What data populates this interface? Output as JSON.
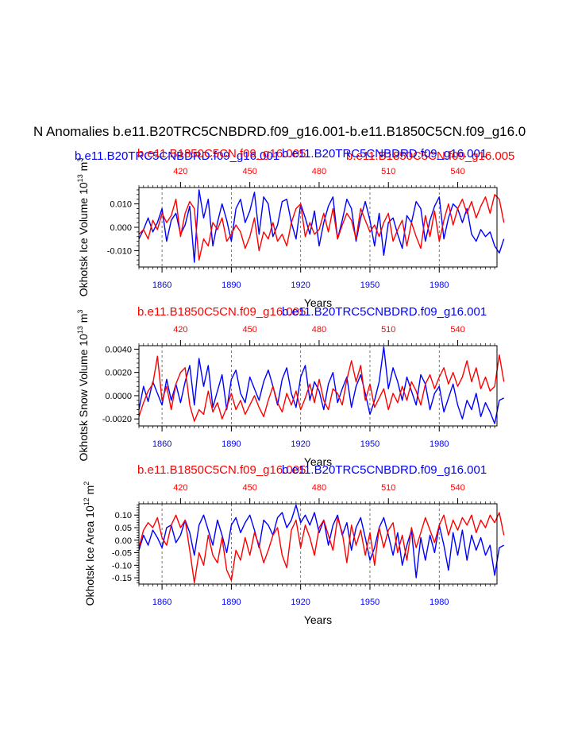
{
  "page": {
    "title": "N Anomalies b.e11.B20TRC5CNBDRD.f09_g16.001-b.e11.B1850C5CN.f09_g16.0",
    "blue_label": "b.e11.B20TRC5CNBDRD.f09_g16.001",
    "red_label": "b.e11.B1850C5CN.f09_g16.005"
  },
  "colors": {
    "blue": "#0000ff",
    "red": "#ff0000",
    "axis": "#000000"
  },
  "chart_data": [
    {
      "type": "line",
      "title": "",
      "ylabel": "Okhotsk Ice Volume 10",
      "ylabel_exp": "13",
      "ylabel_unit": "m",
      "ylabel_unit_exp": "3",
      "xlabel": "Years",
      "top_label_red": "b.e11.B1850C5CN.f09_g16.005",
      "top_label_blue": "b.e11.B20TRC5CNBDRD.f09_g16.001",
      "xlim_bottom": [
        1850,
        2005
      ],
      "xlim_top": [
        402,
        557
      ],
      "ylim": [
        -0.017,
        0.017
      ],
      "yticks": [
        -0.01,
        0.0,
        0.01
      ],
      "ytick_labels": [
        "-0.010",
        "0.000",
        "0.010"
      ],
      "xticks_bottom": [
        1860,
        1890,
        1920,
        1950,
        1980
      ],
      "xticks_top": [
        420,
        450,
        480,
        510,
        540
      ],
      "grid_vlines": [
        1860,
        1890,
        1920,
        1950,
        1980
      ],
      "series": [
        {
          "name": "b.e11.B20TRC5CNBDRD.f09_g16.001",
          "color": "#0000ff",
          "axis": "bottom",
          "x_start": 1850,
          "step": 2,
          "values": [
            -0.005,
            -0.001,
            0.004,
            -0.002,
            0.002,
            0.008,
            -0.006,
            0.003,
            0.006,
            -0.003,
            0.001,
            0.009,
            -0.015,
            0.016,
            0.004,
            0.012,
            -0.008,
            0.002,
            0.01,
            0.003,
            -0.006,
            0.008,
            0.012,
            0.002,
            0.007,
            0.015,
            -0.003,
            0.013,
            0.01,
            -0.004,
            0.001,
            0.011,
            0.012,
            0.002,
            -0.005,
            0.01,
            0.004,
            -0.003,
            0.007,
            -0.008,
            0.002,
            0.009,
            0.013,
            -0.005,
            0.003,
            0.012,
            0.008,
            -0.006,
            0.004,
            0.011,
            0.003,
            -0.008,
            0.006,
            -0.012,
            0.002,
            0.004,
            -0.003,
            -0.009,
            0.005,
            0.002,
            0.011,
            0.008,
            -0.006,
            0.003,
            0.009,
            0.013,
            -0.005,
            0.004,
            0.01,
            0.008,
            0.002,
            0.008,
            -0.003,
            -0.006,
            -0.001,
            -0.004,
            -0.002,
            -0.008,
            -0.011,
            -0.005
          ]
        },
        {
          "name": "b.e11.B1850C5CN.f09_g16.005",
          "color": "#ff0000",
          "axis": "top",
          "x_start": 402,
          "step": 2,
          "values": [
            -0.003,
            -0.001,
            -0.005,
            0.003,
            -0.001,
            0.006,
            0.002,
            0.005,
            0.012,
            -0.004,
            0.006,
            0.011,
            0.008,
            -0.014,
            -0.005,
            -0.008,
            0.002,
            -0.001,
            0.004,
            -0.006,
            -0.003,
            0.001,
            -0.002,
            -0.009,
            -0.004,
            0.004,
            -0.01,
            -0.002,
            -0.005,
            0.002,
            -0.006,
            -0.003,
            -0.008,
            0.002,
            0.008,
            0.01,
            -0.004,
            0.002,
            -0.003,
            -0.001,
            0.006,
            -0.002,
            0.008,
            -0.005,
            0.001,
            0.006,
            0.003,
            -0.005,
            0.008,
            0.003,
            -0.002,
            0.001,
            -0.004,
            0.002,
            0.006,
            -0.006,
            -0.001,
            0.003,
            -0.008,
            0.002,
            -0.004,
            -0.009,
            0.005,
            -0.004,
            0.007,
            -0.006,
            0.003,
            0.01,
            0.001,
            0.008,
            0.012,
            0.006,
            0.011,
            0.004,
            0.009,
            0.013,
            0.006,
            0.014,
            0.012,
            0.002
          ]
        }
      ]
    },
    {
      "type": "line",
      "title": "",
      "ylabel": "Okhotsk Snow Volume 10",
      "ylabel_exp": "13",
      "ylabel_unit": "m",
      "ylabel_unit_exp": "3",
      "xlabel": "Years",
      "top_label_red": "b.e11.B1850C5CN.f09_g16.005",
      "top_label_blue": "b.e11.B20TRC5CNBDRD.f09_g16.001",
      "xlim_bottom": [
        1850,
        2005
      ],
      "xlim_top": [
        402,
        557
      ],
      "ylim": [
        -0.0026,
        0.0043
      ],
      "yticks": [
        -0.002,
        0.0,
        0.002,
        0.004
      ],
      "ytick_labels": [
        "-0.0020",
        "0.0000",
        "0.0020",
        "0.0040"
      ],
      "xticks_bottom": [
        1860,
        1890,
        1920,
        1950,
        1980
      ],
      "xticks_top": [
        420,
        450,
        480,
        510,
        540
      ],
      "grid_vlines": [
        1860,
        1890,
        1920,
        1950,
        1980
      ],
      "series": [
        {
          "name": "b.e11.B20TRC5CNBDRD.f09_g16.001",
          "color": "#0000ff",
          "axis": "bottom",
          "x_start": 1850,
          "step": 2,
          "values": [
            -0.0012,
            0.0008,
            -0.0005,
            0.0012,
            0.0002,
            -0.0008,
            0.0014,
            -0.0004,
            0.001,
            -0.0006,
            0.0012,
            0.0026,
            -0.0008,
            0.0032,
            0.0008,
            0.0026,
            -0.001,
            0.0004,
            0.0018,
            -0.0012,
            0.0014,
            0.0022,
            0.0002,
            -0.0006,
            0.0016,
            0.0006,
            -0.0004,
            0.0012,
            0.0022,
            0.0008,
            -0.0008,
            0.0014,
            0.0024,
            0.0002,
            -0.001,
            0.0016,
            0.0026,
            -0.0004,
            0.0012,
            0.0004,
            -0.0012,
            0.001,
            0.002,
            -0.0006,
            0.0006,
            0.0016,
            -0.001,
            0.0008,
            0.0018,
            0.0002,
            -0.0016,
            -0.0004,
            0.0012,
            0.0042,
            0.0006,
            0.0024,
            0.0012,
            -0.0004,
            0.0016,
            0.0004,
            -0.0008,
            0.0018,
            0.001,
            -0.0012,
            0.0002,
            0.0008,
            -0.0014,
            -0.0002,
            0.001,
            -0.0008,
            -0.002,
            -0.0004,
            -0.0012,
            0.0002,
            -0.0018,
            -0.0006,
            -0.0014,
            -0.0024,
            -0.0004,
            -0.0002
          ]
        },
        {
          "name": "b.e11.B1850C5CN.f09_g16.005",
          "color": "#ff0000",
          "axis": "top",
          "x_start": 402,
          "step": 2,
          "values": [
            -0.0018,
            -0.0006,
            0.0004,
            0.001,
            0.0034,
            -0.0004,
            0.0008,
            -0.0012,
            0.001,
            0.002,
            0.0024,
            -0.0008,
            -0.0022,
            -0.0012,
            -0.0016,
            0.0004,
            -0.0014,
            -0.0006,
            -0.002,
            -0.001,
            0.0002,
            -0.0012,
            -0.0004,
            -0.0016,
            -0.0008,
            0.0,
            -0.001,
            -0.0018,
            -0.0004,
            0.0008,
            -0.0006,
            -0.0014,
            0.0002,
            -0.0008,
            0.0004,
            -0.0012,
            -0.0002,
            0.001,
            -0.0006,
            0.0014,
            -0.0004,
            -0.0012,
            0.0006,
            0.0002,
            -0.0008,
            0.0014,
            0.003,
            0.0012,
            0.0026,
            -0.0004,
            0.001,
            -0.001,
            -0.0002,
            0.0006,
            -0.0012,
            0.0002,
            -0.0006,
            0.0008,
            -0.0004,
            0.0012,
            0.0004,
            -0.0008,
            0.001,
            0.0018,
            0.0006,
            0.0016,
            0.0024,
            0.001,
            0.002,
            0.0008,
            0.0016,
            0.003,
            0.0012,
            0.0024,
            0.0006,
            0.0016,
            0.0004,
            0.0008,
            0.0035,
            0.0012
          ]
        }
      ]
    },
    {
      "type": "line",
      "title": "",
      "ylabel": "Okhotsk Ice Area 10",
      "ylabel_exp": "12",
      "ylabel_unit": "m",
      "ylabel_unit_exp": "2",
      "xlabel": "Years",
      "top_label_red": "b.e11.B1850C5CN.f09_g16.005",
      "top_label_blue": "b.e11.B20TRC5CNBDRD.f09_g16.001",
      "xlim_bottom": [
        1850,
        2005
      ],
      "xlim_top": [
        402,
        557
      ],
      "ylim": [
        -0.175,
        0.145
      ],
      "yticks": [
        -0.15,
        -0.1,
        -0.05,
        0.0,
        0.05,
        0.1
      ],
      "ytick_labels": [
        "-0.15",
        "-0.10",
        "-0.05",
        "0.00",
        "0.05",
        "0.10"
      ],
      "xticks_bottom": [
        1860,
        1890,
        1920,
        1950,
        1980
      ],
      "xticks_top": [
        420,
        450,
        480,
        510,
        540
      ],
      "grid_vlines": [
        1860,
        1890,
        1920,
        1950,
        1980
      ],
      "series": [
        {
          "name": "b.e11.B20TRC5CNBDRD.f09_g16.001",
          "color": "#0000ff",
          "axis": "bottom",
          "x_start": 1850,
          "step": 2,
          "values": [
            -0.04,
            0.02,
            -0.02,
            0.04,
            0.01,
            -0.03,
            0.05,
            0.06,
            -0.01,
            0.02,
            0.08,
            0.03,
            -0.06,
            0.06,
            0.1,
            0.04,
            -0.02,
            0.08,
            0.02,
            -0.05,
            0.06,
            0.09,
            0.03,
            0.07,
            0.1,
            0.04,
            -0.03,
            0.08,
            0.06,
            0.02,
            0.09,
            0.11,
            0.05,
            0.08,
            0.14,
            0.07,
            0.1,
            0.06,
            0.11,
            0.03,
            0.08,
            -0.02,
            0.06,
            0.1,
            0.02,
            0.07,
            -0.04,
            0.05,
            0.09,
            0.01,
            -0.08,
            -0.03,
            0.05,
            0.09,
            0.02,
            -0.06,
            0.03,
            -0.1,
            -0.02,
            0.04,
            -0.15,
            0.01,
            -0.08,
            0.02,
            -0.05,
            0.06,
            -0.02,
            -0.12,
            0.03,
            -0.06,
            0.04,
            -0.08,
            0.02,
            -0.04,
            0.01,
            -0.06,
            -0.02,
            -0.14,
            -0.03,
            -0.02
          ]
        },
        {
          "name": "b.e11.B1850C5CN.f09_g16.005",
          "color": "#ff0000",
          "axis": "top",
          "x_start": 402,
          "step": 2,
          "values": [
            -0.03,
            0.04,
            0.07,
            0.05,
            0.09,
            0.01,
            -0.02,
            0.06,
            0.1,
            0.05,
            0.08,
            -0.04,
            -0.17,
            -0.05,
            -0.1,
            0.02,
            -0.06,
            -0.09,
            0.01,
            -0.12,
            -0.16,
            -0.04,
            -0.08,
            0.01,
            -0.06,
            0.03,
            -0.02,
            -0.09,
            -0.04,
            0.02,
            0.05,
            -0.06,
            -0.11,
            0.04,
            0.08,
            -0.03,
            0.06,
            0.01,
            -0.06,
            0.05,
            0.08,
            0.02,
            -0.04,
            0.09,
            0.03,
            -0.09,
            0.06,
            -0.02,
            0.04,
            -0.06,
            0.03,
            -0.1,
            0.05,
            -0.03,
            0.04,
            0.07,
            -0.05,
            0.02,
            -0.08,
            0.05,
            -0.03,
            0.03,
            0.09,
            0.04,
            -0.01,
            0.06,
            0.1,
            0.02,
            0.08,
            0.04,
            0.09,
            0.06,
            0.1,
            0.03,
            0.08,
            0.05,
            0.1,
            0.07,
            0.11,
            0.02
          ]
        }
      ]
    }
  ]
}
